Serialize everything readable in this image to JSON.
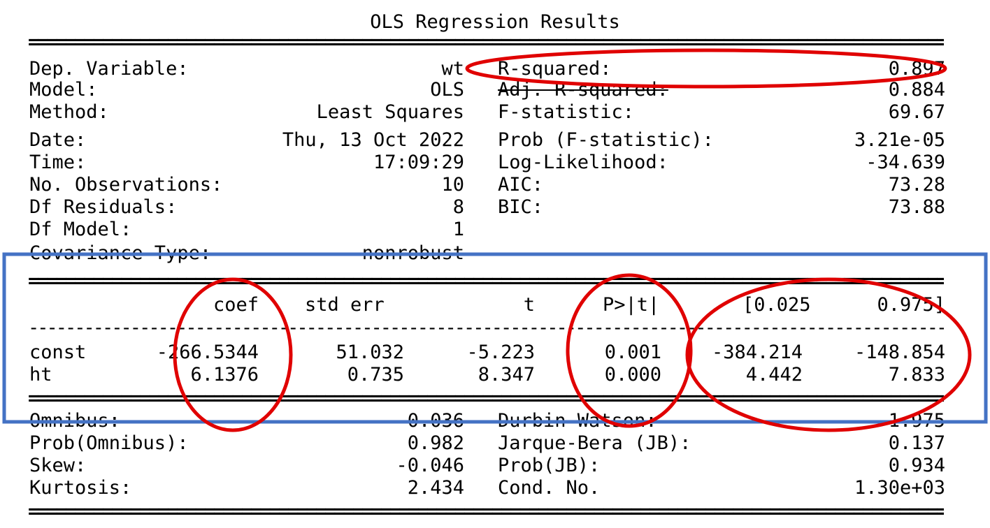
{
  "title": "OLS Regression Results",
  "rule_double": "====================================================================================================",
  "rule_single": "----------------------------------------------------------------------------------------------------",
  "summary_left": [
    {
      "label": "Dep. Variable:",
      "value": "wt"
    },
    {
      "label": "Model:",
      "value": "OLS"
    },
    {
      "label": "Method:",
      "value": "Least Squares"
    },
    {
      "label": "Date:",
      "value": "Thu, 13 Oct 2022"
    },
    {
      "label": "Time:",
      "value": "17:09:29"
    },
    {
      "label": "No. Observations:",
      "value": "10"
    },
    {
      "label": "Df Residuals:",
      "value": "8"
    },
    {
      "label": "Df Model:",
      "value": "1"
    },
    {
      "label": "Covariance Type:",
      "value": "nonrobust"
    }
  ],
  "summary_right": [
    {
      "label": "R-squared:",
      "value": "0.897"
    },
    {
      "label": "Adj. R-squared:",
      "value": "0.884"
    },
    {
      "label": "F-statistic:",
      "value": "69.67"
    },
    {
      "label": "Prob (F-statistic):",
      "value": "3.21e-05"
    },
    {
      "label": "Log-Likelihood:",
      "value": "-34.639"
    },
    {
      "label": "AIC:",
      "value": "73.28"
    },
    {
      "label": "BIC:",
      "value": "73.88"
    }
  ],
  "coef_table": {
    "headers": [
      "coef",
      "std err",
      "t",
      "P>|t|",
      "[0.025",
      "0.975]"
    ],
    "rows": [
      {
        "name": "const",
        "values": [
          "-266.5344",
          "51.032",
          "-5.223",
          "0.001",
          "-384.214",
          "-148.854"
        ]
      },
      {
        "name": "ht",
        "values": [
          "6.1376",
          "0.735",
          "8.347",
          "0.000",
          "4.442",
          "7.833"
        ]
      }
    ]
  },
  "diagnostics_left": [
    {
      "label": "Omnibus:",
      "value": "0.036"
    },
    {
      "label": "Prob(Omnibus):",
      "value": "0.982"
    },
    {
      "label": "Skew:",
      "value": "-0.046"
    },
    {
      "label": "Kurtosis:",
      "value": "2.434"
    }
  ],
  "diagnostics_right": [
    {
      "label": "Durbin-Watson:",
      "value": "1.975"
    },
    {
      "label": "Jarque-Bera (JB):",
      "value": "0.137"
    },
    {
      "label": "Prob(JB):",
      "value": "0.934"
    },
    {
      "label": "Cond. No.",
      "value": "1.30e+03"
    }
  ],
  "annotation_colors": {
    "circle": "#e00000",
    "box": "#4472c4"
  }
}
